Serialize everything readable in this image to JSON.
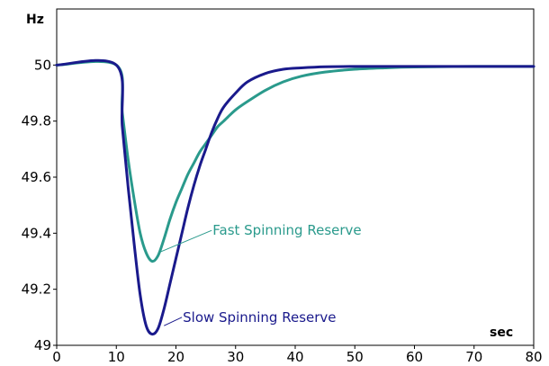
{
  "chart_data": {
    "type": "line",
    "title": "",
    "ylabel": "Hz",
    "xlabel": "sec",
    "xlim": [
      0,
      80
    ],
    "ylim": [
      49,
      50.2
    ],
    "x_ticks": [
      0,
      10,
      20,
      30,
      40,
      50,
      60,
      70,
      80
    ],
    "y_ticks": [
      49,
      49.2,
      49.4,
      49.6,
      49.8,
      50
    ],
    "grid": false,
    "series": [
      {
        "name": "Fast Spinning Reserve",
        "color": "#2a9a8c",
        "x": [
          0,
          10,
          11,
          12,
          13,
          14,
          15,
          16,
          17,
          18,
          19,
          20,
          21,
          22,
          23,
          24,
          25,
          26,
          27,
          28,
          30,
          32,
          35,
          38,
          41,
          45,
          50,
          55,
          60,
          70,
          80
        ],
        "y": [
          50,
          50,
          49.83,
          49.66,
          49.52,
          49.4,
          49.33,
          49.3,
          49.32,
          49.38,
          49.45,
          49.51,
          49.56,
          49.61,
          49.65,
          49.69,
          49.72,
          49.75,
          49.78,
          49.8,
          49.84,
          49.87,
          49.91,
          49.94,
          49.96,
          49.975,
          49.985,
          49.99,
          49.993,
          49.995,
          49.995
        ]
      },
      {
        "name": "Slow Spinning Reserve",
        "color": "#1a1a8c",
        "x": [
          0,
          10,
          11,
          12,
          13,
          14,
          15,
          16,
          17,
          18,
          19,
          20,
          21,
          22,
          23,
          24,
          25,
          26,
          27,
          28,
          30,
          32,
          35,
          38,
          41,
          45,
          50,
          55,
          60,
          70,
          80
        ],
        "y": [
          50,
          50,
          49.78,
          49.56,
          49.36,
          49.18,
          49.07,
          49.04,
          49.06,
          49.13,
          49.22,
          49.31,
          49.4,
          49.49,
          49.57,
          49.64,
          49.7,
          49.76,
          49.81,
          49.85,
          49.9,
          49.94,
          49.97,
          49.985,
          49.99,
          49.994,
          49.995,
          49.995,
          49.995,
          49.995,
          49.995
        ]
      }
    ],
    "annotations": [
      {
        "text": "Fast Spinning Reserve",
        "series": 0,
        "x": 17,
        "y": 49.33,
        "text_x": 26,
        "text_y": 49.41
      },
      {
        "text": "Slow Spinning Reserve",
        "series": 1,
        "x": 18,
        "y": 49.07,
        "text_x": 21,
        "text_y": 49.1
      }
    ]
  }
}
